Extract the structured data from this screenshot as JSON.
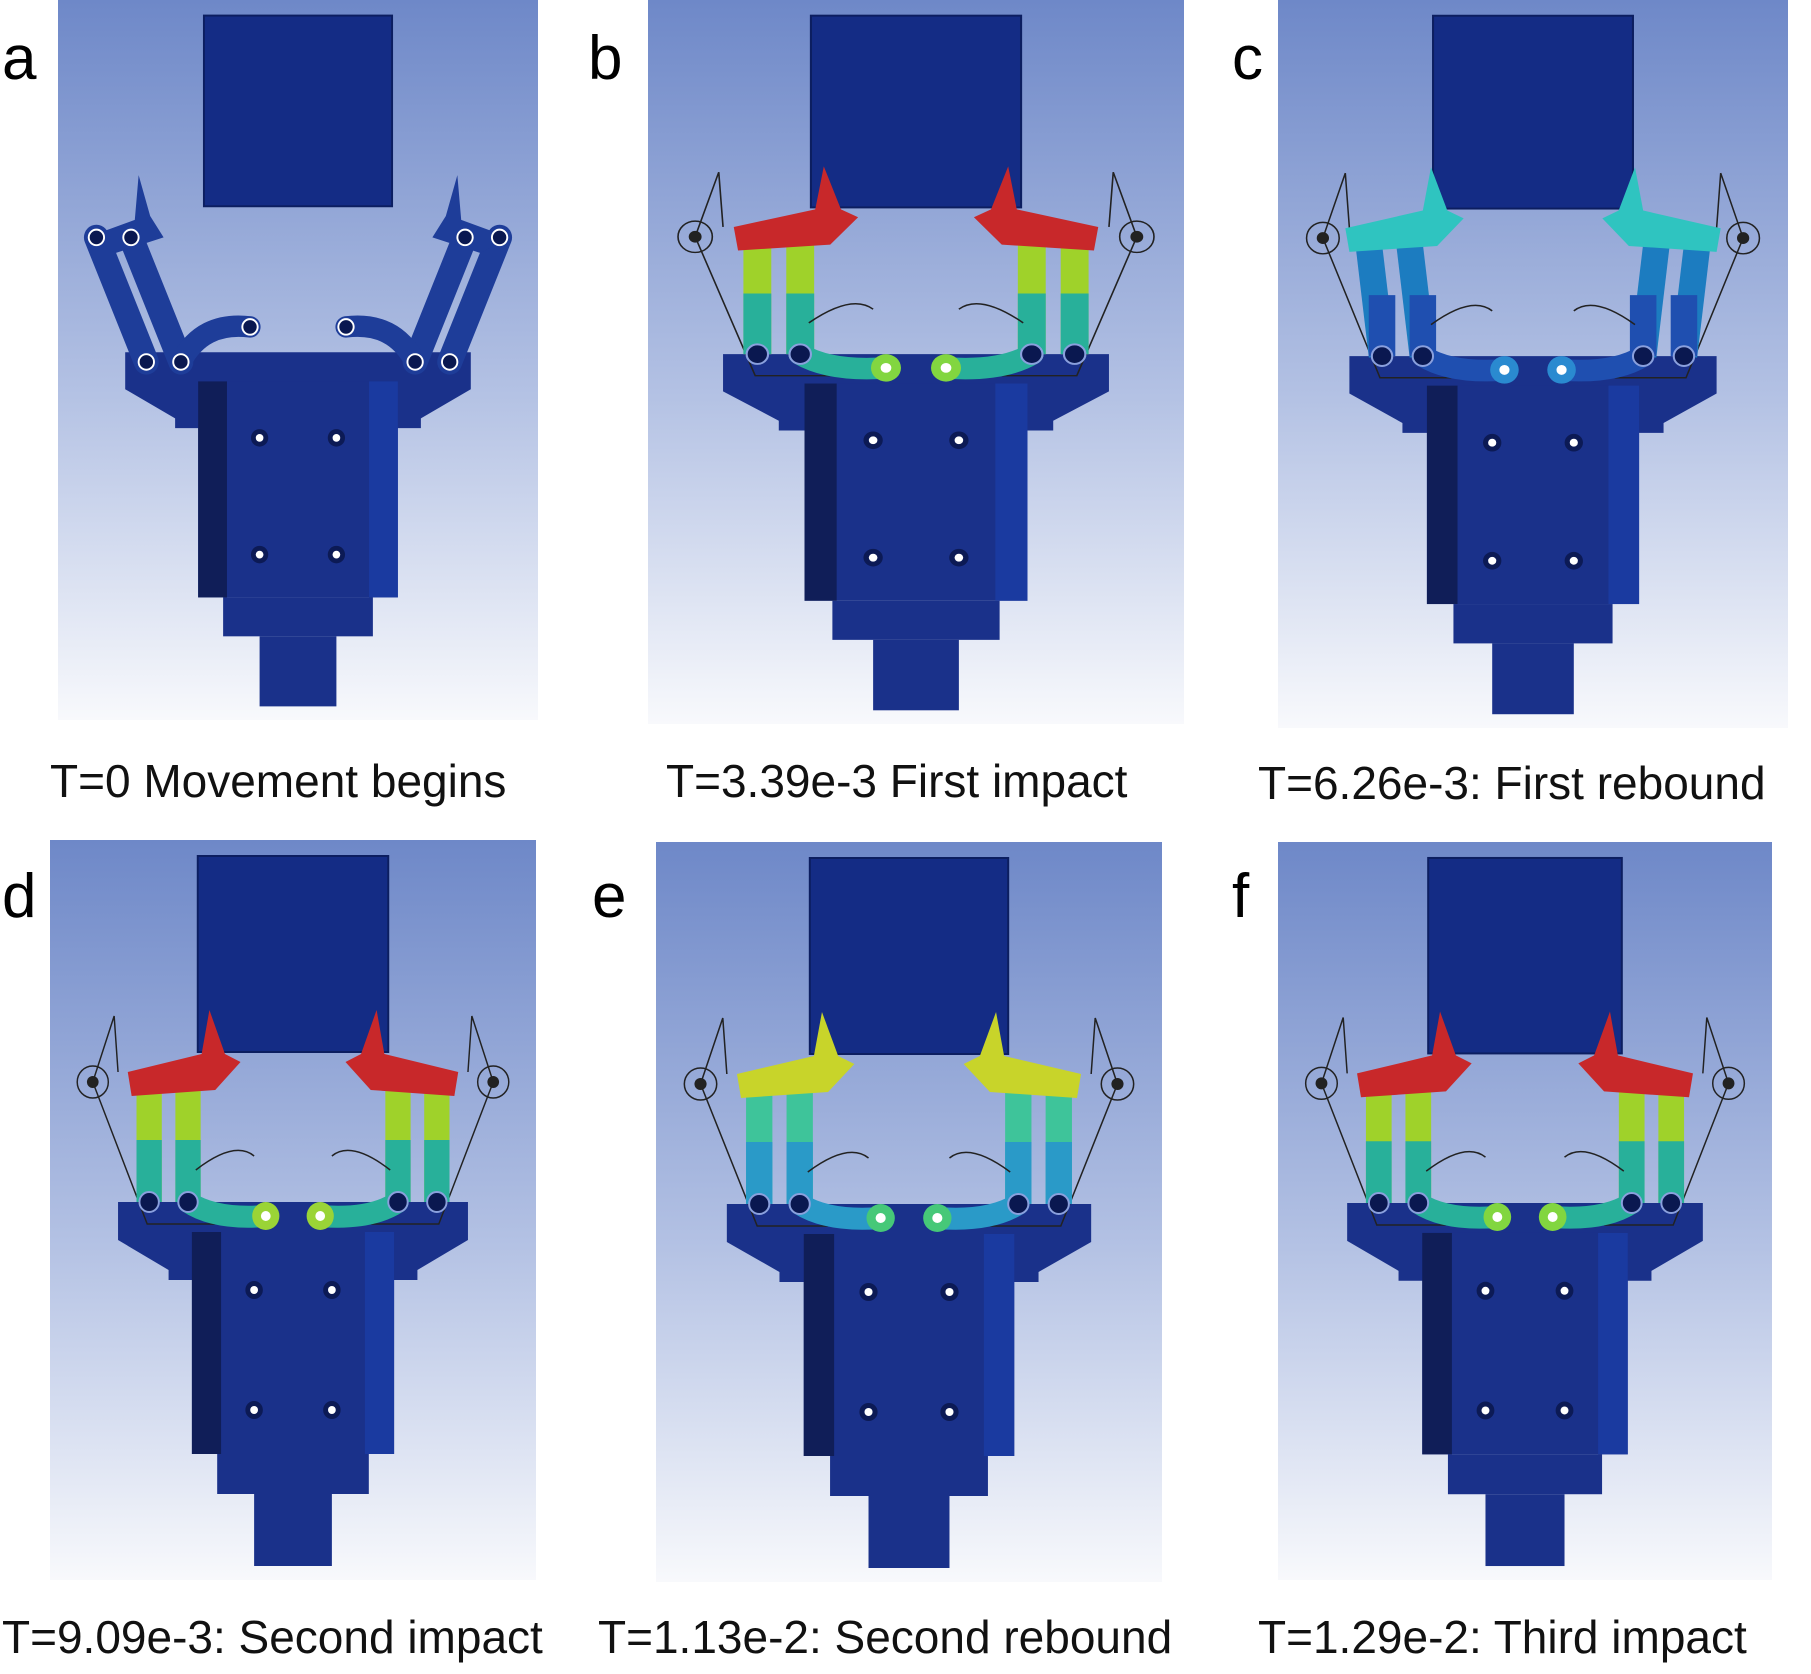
{
  "figure": {
    "panels": [
      {
        "id": "a",
        "letter": "a",
        "caption": "T=0 Movement begins",
        "state": "open",
        "colors": {
          "pads": "#1e3d99",
          "upper": "#1e3d99",
          "lower": "#1e3d99",
          "tip": "#1e3d99",
          "pivot": "#1e3d99"
        }
      },
      {
        "id": "b",
        "letter": "b",
        "caption": "T=3.39e-3 First impact",
        "state": "closed",
        "colors": {
          "pads": "#c8282a",
          "upper": "#9fd22a",
          "lower": "#28b09a",
          "tip": "#82d640",
          "pivot": "#1e3d99"
        }
      },
      {
        "id": "c",
        "letter": "c",
        "caption": "T=6.26e-3: First rebound",
        "state": "rebound",
        "colors": {
          "pads": "#2fc4c0",
          "upper": "#1c7cc0",
          "lower": "#1f4fb0",
          "tip": "#2a8ad0",
          "pivot": "#1e3d99"
        }
      },
      {
        "id": "d",
        "letter": "d",
        "caption": "T=9.09e-3: Second impact",
        "state": "closed",
        "colors": {
          "pads": "#c8282a",
          "upper": "#9fd22a",
          "lower": "#28b09a",
          "tip": "#9ad436",
          "pivot": "#1e3d99"
        }
      },
      {
        "id": "e",
        "letter": "e",
        "caption": "T=1.13e-2: Second rebound",
        "state": "closed",
        "colors": {
          "pads": "#c8d42a",
          "upper": "#3ec49a",
          "lower": "#2a9ac8",
          "tip": "#46c878",
          "pivot": "#1e3d99"
        }
      },
      {
        "id": "f",
        "letter": "f",
        "caption": "T=1.29e-2: Third impact",
        "state": "closed",
        "colors": {
          "pads": "#c8282a",
          "upper": "#9fd22a",
          "lower": "#28b09a",
          "tip": "#82d640",
          "pivot": "#1e3d99"
        }
      }
    ],
    "colors": {
      "body": "#1a318a",
      "body_dark": "#101e58",
      "block": "#142c85",
      "bg_top": "#6e88c8",
      "bg_bottom": "#f8f9fc"
    }
  }
}
